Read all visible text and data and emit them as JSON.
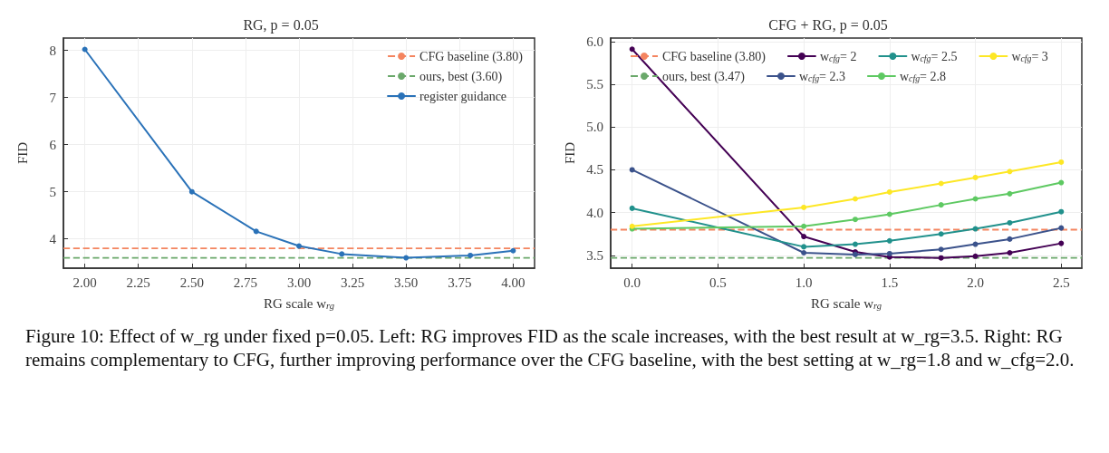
{
  "chart_data": [
    {
      "type": "line",
      "title": "RG, p = 0.05",
      "xlabel": "RG scale w$_{rg}$",
      "ylabel": "FID",
      "x": [
        2.0,
        2.5,
        2.8,
        3.0,
        3.2,
        3.5,
        3.8,
        4.0
      ],
      "series": [
        {
          "name": "register guidance",
          "color": "#2a72b8",
          "values": [
            8.02,
            5.0,
            4.16,
            3.85,
            3.68,
            3.6,
            3.65,
            3.75
          ]
        }
      ],
      "ref_lines": [
        {
          "axis": "y",
          "value": 3.8,
          "label": "CFG baseline (3.80)",
          "color": "#f4845f",
          "line_style": "dashed"
        },
        {
          "axis": "y",
          "value": 3.6,
          "label": "ours, best (3.60)",
          "color": "#6aa86a",
          "line_style": "dashed"
        }
      ],
      "xlim": [
        1.9,
        4.1
      ],
      "xticks": [
        {
          "value": 2.0,
          "label": "2.00"
        },
        {
          "value": 2.25,
          "label": "2.25"
        },
        {
          "value": 2.5,
          "label": "2.50"
        },
        {
          "value": 2.75,
          "label": "2.75"
        },
        {
          "value": 3.0,
          "label": "3.00"
        },
        {
          "value": 3.25,
          "label": "3.25"
        },
        {
          "value": 3.5,
          "label": "3.50"
        },
        {
          "value": 3.75,
          "label": "3.75"
        },
        {
          "value": 4.0,
          "label": "4.00"
        }
      ],
      "ylim": [
        3.38,
        8.26
      ],
      "yticks": [
        4,
        5,
        6,
        7,
        8
      ],
      "grid": true,
      "legend": "top right",
      "marker": "circle",
      "line_style": "solid",
      "annotations": [
        "Figure 10: Effect of w_rg under fixed p=0.05. Left: RG improves FID as the scale increases, with the best result at w_rg=3.5. Right: RG remains complementary to CFG, further improving performance over the CFG baseline, with the best setting at w_rg=1.8 and w_cfg=2.0."
      ]
    },
    {
      "type": "line",
      "title": "CFG + RG, p = 0.05",
      "xlabel": "RG scale w$_{rg}$",
      "ylabel": "FID",
      "x": [
        0.0,
        1.0,
        1.3,
        1.5,
        1.8,
        2.0,
        2.2,
        2.5
      ],
      "series": [
        {
          "name": "w$_{cfg}$= 2",
          "color": "#440154",
          "values": [
            5.91,
            3.72,
            3.54,
            3.48,
            3.47,
            3.49,
            3.53,
            3.64
          ]
        },
        {
          "name": "w$_{cfg}$= 2.3",
          "color": "#3b528b",
          "values": [
            4.5,
            3.53,
            3.51,
            3.52,
            3.57,
            3.63,
            3.69,
            3.82
          ]
        },
        {
          "name": "w$_{cfg}$= 2.5",
          "color": "#21918c",
          "values": [
            4.05,
            3.6,
            3.63,
            3.67,
            3.75,
            3.81,
            3.88,
            4.01
          ]
        },
        {
          "name": "w$_{cfg}$= 2.8",
          "color": "#5ec962",
          "values": [
            3.81,
            3.84,
            3.92,
            3.98,
            4.09,
            4.16,
            4.22,
            4.35
          ]
        },
        {
          "name": "w$_{cfg}$= 3",
          "color": "#fde725",
          "values": [
            3.84,
            4.06,
            4.16,
            4.24,
            4.34,
            4.41,
            4.48,
            4.59
          ]
        }
      ],
      "ref_lines": [
        {
          "axis": "y",
          "value": 3.8,
          "label": "CFG baseline (3.80)",
          "color": "#f4845f",
          "line_style": "dashed"
        },
        {
          "axis": "y",
          "value": 3.47,
          "label": "ours, best (3.47)",
          "color": "#6aa86a",
          "line_style": "dashed"
        }
      ],
      "xlim": [
        -0.125,
        2.62
      ],
      "xticks": [
        {
          "value": 0,
          "label": "0.0"
        },
        0.5,
        {
          "value": 1,
          "label": "1.0"
        },
        1.5,
        {
          "value": 2,
          "label": "2.0"
        },
        2.5
      ],
      "ylim": [
        3.35,
        6.04
      ],
      "yticks": [
        3.5,
        {
          "value": 4,
          "label": "4.0"
        },
        4.5,
        {
          "value": 5,
          "label": "5.0"
        },
        5.5,
        {
          "value": 6,
          "label": "6.0"
        }
      ],
      "grid": true,
      "legend": "top",
      "marker": "circle",
      "line_style": "solid"
    }
  ]
}
